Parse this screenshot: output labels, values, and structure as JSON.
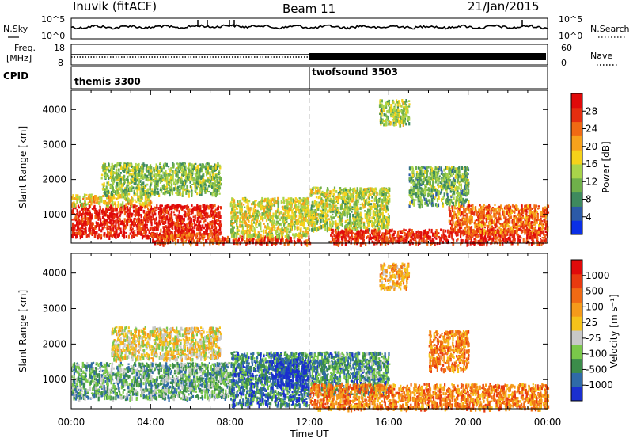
{
  "header": {
    "station": "Inuvik (fitACF)",
    "beam": "Beam 11",
    "date": "21/Jan/2015"
  },
  "noise_panel": {
    "left_label": "N.Sky",
    "right_label": "N.Search",
    "left_ticks": [
      "10^5",
      "10^0"
    ],
    "right_ticks": [
      "10^5",
      "10^0"
    ]
  },
  "freq_panel": {
    "left_label_1": "Freq.",
    "left_label_2": "[MHz]",
    "right_label": "Nave",
    "left_ticks": [
      "18",
      "8"
    ],
    "right_ticks": [
      "60",
      "0"
    ]
  },
  "cpid_panel": {
    "label": "CPID",
    "modes": [
      "themis 3300",
      "twofsound 3503"
    ],
    "mode_change_hour": 12
  },
  "chart_data": [
    {
      "type": "heatmap",
      "name": "power",
      "ylabel": "Slant Range [km]",
      "yticks": [
        "1000",
        "2000",
        "3000",
        "4000"
      ],
      "ylim": [
        180,
        4550
      ],
      "xlim": [
        0,
        24
      ],
      "colorbar_label": "Power [dB]",
      "colorbar_ticks": [
        "28",
        "24",
        "20",
        "16",
        "12",
        "8",
        "4"
      ],
      "colorscale": [
        "#0a2fe6",
        "#2b5aa8",
        "#3e8a5e",
        "#6fb04a",
        "#a9d44a",
        "#f5d21a",
        "#f7a21c",
        "#f06a14",
        "#e52e10",
        "#e00a0a"
      ],
      "regions": [
        {
          "x": [
            0,
            7.5
          ],
          "y": [
            400,
            1300
          ],
          "level": 0.92
        },
        {
          "x": [
            0,
            4
          ],
          "y": [
            1300,
            1600
          ],
          "level": 0.55
        },
        {
          "x": [
            4,
            7.5
          ],
          "y": [
            200,
            500
          ],
          "level": 0.8
        },
        {
          "x": [
            7.5,
            12
          ],
          "y": [
            200,
            400
          ],
          "level": 0.85
        },
        {
          "x": [
            8,
            12
          ],
          "y": [
            400,
            1500
          ],
          "level": 0.5
        },
        {
          "x": [
            12,
            16
          ],
          "y": [
            600,
            1800
          ],
          "level": 0.45
        },
        {
          "x": [
            13,
            24
          ],
          "y": [
            200,
            600
          ],
          "level": 0.88
        },
        {
          "x": [
            19,
            24
          ],
          "y": [
            500,
            1300
          ],
          "level": 0.75
        },
        {
          "x": [
            17,
            20
          ],
          "y": [
            1300,
            2400
          ],
          "level": 0.35
        },
        {
          "x": [
            15.5,
            17
          ],
          "y": [
            3600,
            4300
          ],
          "level": 0.45
        },
        {
          "x": [
            1.5,
            7.5
          ],
          "y": [
            1600,
            2500
          ],
          "level": 0.4
        }
      ]
    },
    {
      "type": "heatmap",
      "name": "velocity",
      "ylabel": "Slant Range [km]",
      "yticks": [
        "1000",
        "2000",
        "3000",
        "4000"
      ],
      "ylim": [
        180,
        4550
      ],
      "xlim": [
        0,
        24
      ],
      "xlabel": "Time UT",
      "xticks": [
        "00:00",
        "04:00",
        "08:00",
        "12:00",
        "16:00",
        "20:00",
        "00:00"
      ],
      "colorbar_label": "Velocity [m s⁻¹]",
      "colorbar_ticks": [
        "1000",
        "500",
        "100",
        "25",
        "-25",
        "-100",
        "-500",
        "-1000"
      ],
      "colorscale": [
        "#1a2fd0",
        "#2f6aa8",
        "#3b8c4a",
        "#7ac84a",
        "#c8c8c8",
        "#f5c21a",
        "#f59a1a",
        "#f06a14",
        "#e83a10",
        "#e00a0a"
      ],
      "regions": [
        {
          "x": [
            0,
            8
          ],
          "y": [
            500,
            1500
          ],
          "level": 0.3
        },
        {
          "x": [
            8,
            12
          ],
          "y": [
            300,
            1800
          ],
          "level": 0.2
        },
        {
          "x": [
            10,
            12
          ],
          "y": [
            800,
            1600
          ],
          "level": 0.05
        },
        {
          "x": [
            12,
            16
          ],
          "y": [
            600,
            1800
          ],
          "level": 0.25
        },
        {
          "x": [
            12,
            24
          ],
          "y": [
            200,
            900
          ],
          "level": 0.72
        },
        {
          "x": [
            18,
            20
          ],
          "y": [
            1300,
            2400
          ],
          "level": 0.7
        },
        {
          "x": [
            15.5,
            17
          ],
          "y": [
            3600,
            4300
          ],
          "level": 0.6
        },
        {
          "x": [
            2,
            7.5
          ],
          "y": [
            1600,
            2500
          ],
          "level": 0.5
        }
      ]
    }
  ]
}
